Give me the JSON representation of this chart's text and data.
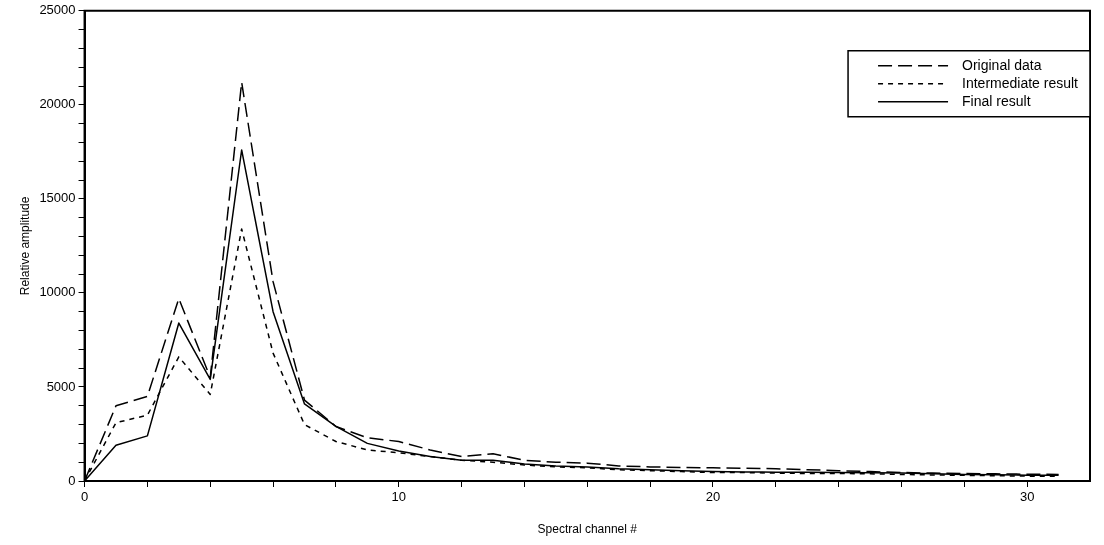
{
  "chart_data": {
    "type": "line",
    "xlabel": "Spectral channel #",
    "ylabel": "Relative amplitude",
    "x": [
      0,
      1,
      2,
      3,
      4,
      5,
      6,
      7,
      8,
      9,
      10,
      11,
      12,
      13,
      14,
      15,
      16,
      17,
      18,
      19,
      20,
      21,
      22,
      23,
      24,
      25,
      26,
      27,
      28,
      29,
      30,
      31
    ],
    "series": [
      {
        "name": "Original data",
        "color": "#000000",
        "line_style": "dashed",
        "values": [
          0,
          4000,
          4500,
          9700,
          5500,
          21200,
          10600,
          4300,
          2900,
          2300,
          2100,
          1650,
          1300,
          1450,
          1100,
          1000,
          950,
          800,
          750,
          720,
          700,
          680,
          650,
          600,
          550,
          500,
          450,
          420,
          400,
          380,
          360,
          350
        ]
      },
      {
        "name": "Intermediate result",
        "color": "#000000",
        "line_style": "dotted",
        "values": [
          0,
          3100,
          3500,
          6600,
          4600,
          13400,
          6800,
          3000,
          2100,
          1650,
          1500,
          1300,
          1100,
          1000,
          850,
          750,
          700,
          600,
          550,
          500,
          450,
          450,
          420,
          400,
          400,
          380,
          350,
          320,
          300,
          280,
          260,
          250
        ]
      },
      {
        "name": "Final result",
        "color": "#000000",
        "line_style": "solid",
        "values": [
          0,
          1900,
          2400,
          8400,
          5400,
          17600,
          9000,
          4100,
          2900,
          2000,
          1600,
          1300,
          1100,
          1100,
          900,
          800,
          750,
          650,
          600,
          550,
          500,
          480,
          470,
          460,
          450,
          440,
          420,
          380,
          350,
          330,
          310,
          300
        ]
      }
    ],
    "xlim": [
      0,
      32
    ],
    "xticks": [
      0,
      {
        "value": 2,
        "label": null
      },
      {
        "value": 4,
        "label": null
      },
      {
        "value": 6,
        "label": null
      },
      {
        "value": 8,
        "label": null
      },
      10,
      {
        "value": 12,
        "label": null
      },
      {
        "value": 14,
        "label": null
      },
      {
        "value": 16,
        "label": null
      },
      {
        "value": 18,
        "label": null
      },
      20,
      {
        "value": 22,
        "label": null
      },
      {
        "value": 24,
        "label": null
      },
      {
        "value": 26,
        "label": null
      },
      {
        "value": 28,
        "label": null
      },
      30
    ],
    "ylim": [
      0,
      25000
    ],
    "yticks": [
      0,
      {
        "value": 1000,
        "label": null
      },
      {
        "value": 2000,
        "label": null
      },
      {
        "value": 3000,
        "label": null
      },
      {
        "value": 4000,
        "label": null
      },
      5000,
      {
        "value": 6000,
        "label": null
      },
      {
        "value": 7000,
        "label": null
      },
      {
        "value": 8000,
        "label": null
      },
      {
        "value": 9000,
        "label": null
      },
      10000,
      {
        "value": 11000,
        "label": null
      },
      {
        "value": 12000,
        "label": null
      },
      {
        "value": 13000,
        "label": null
      },
      {
        "value": 14000,
        "label": null
      },
      15000,
      {
        "value": 16000,
        "label": null
      },
      {
        "value": 17000,
        "label": null
      },
      {
        "value": 18000,
        "label": null
      },
      {
        "value": 19000,
        "label": null
      },
      20000,
      {
        "value": 21000,
        "label": null
      },
      {
        "value": 22000,
        "label": null
      },
      {
        "value": 23000,
        "label": null
      },
      {
        "value": 24000,
        "label": null
      },
      25000
    ],
    "grid": false,
    "legend": "top right",
    "marker": "none"
  }
}
